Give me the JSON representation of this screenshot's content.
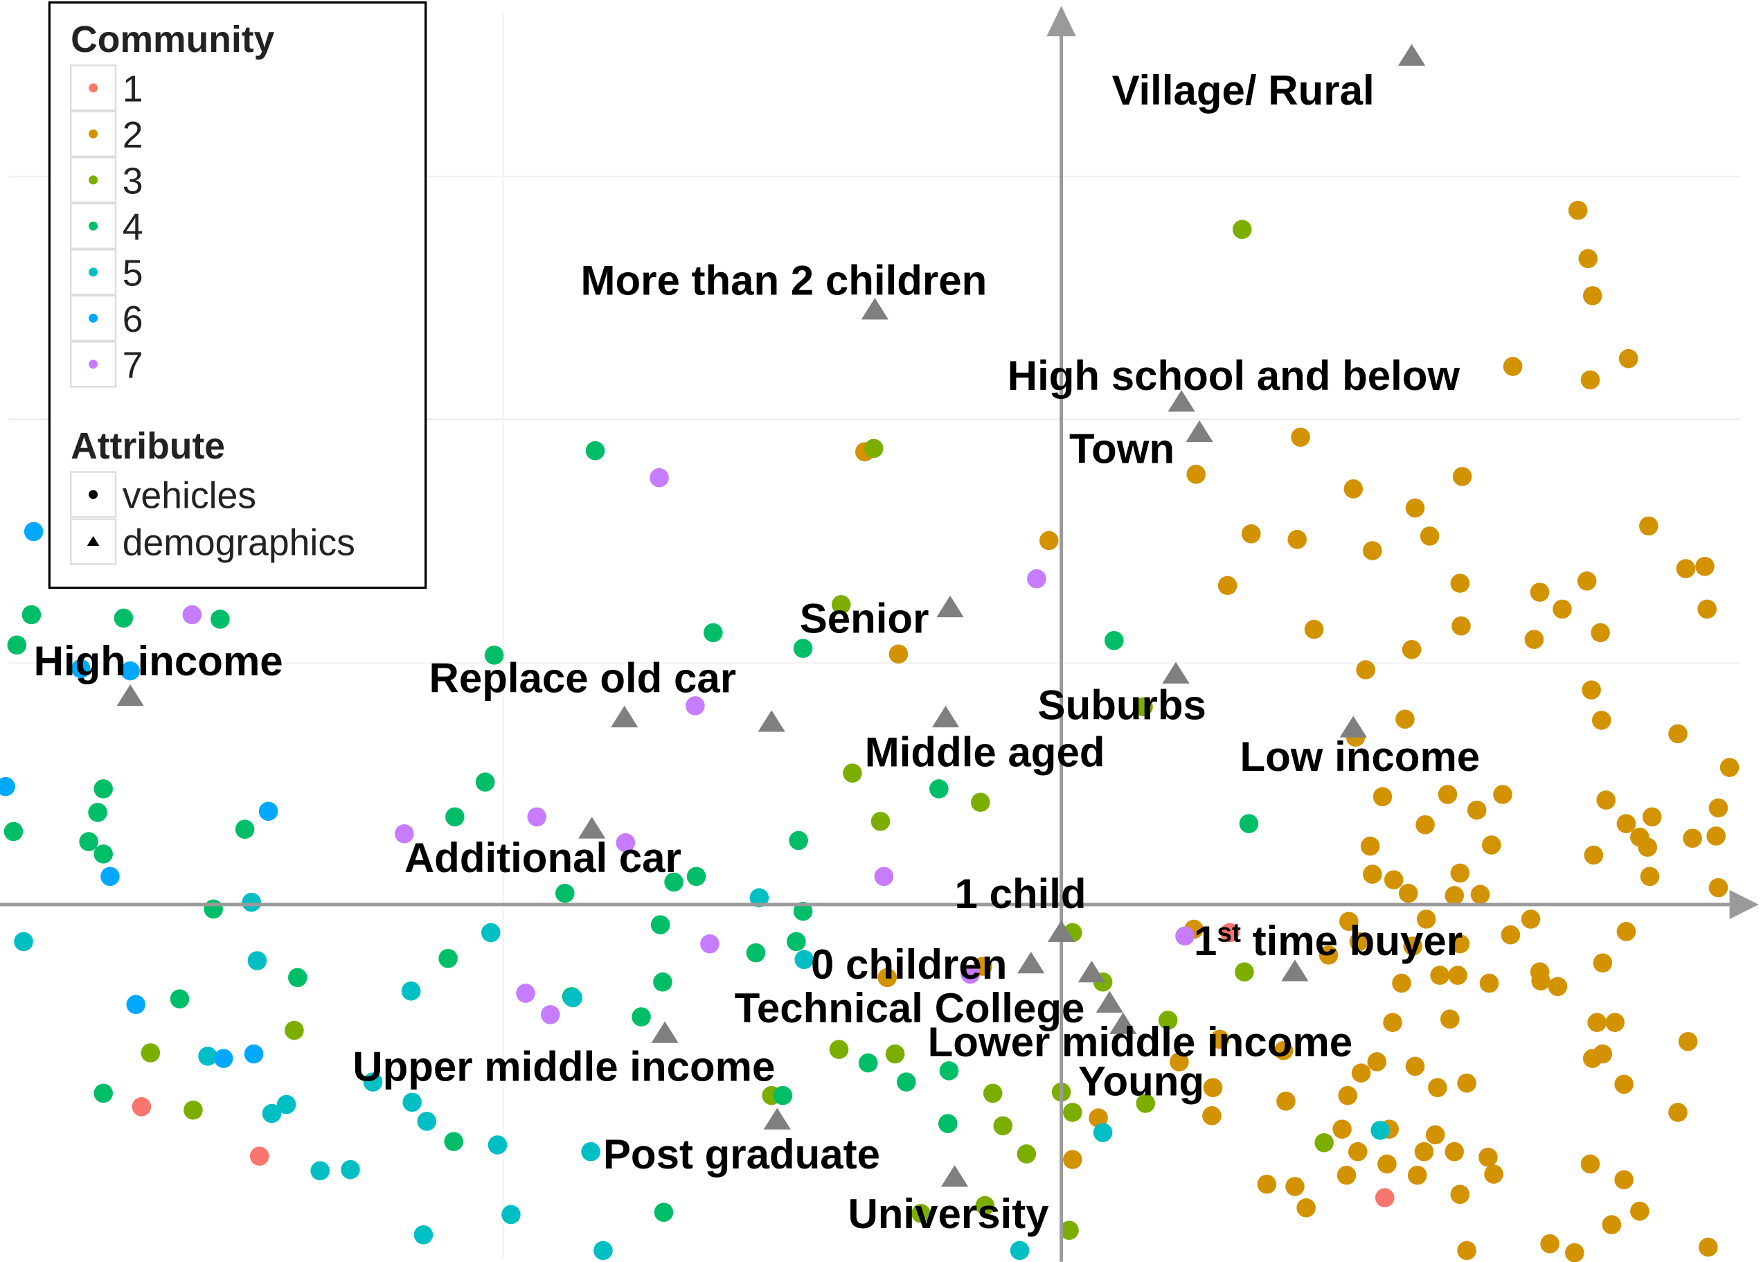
{
  "chart_data": {
    "type": "scatter",
    "title": "",
    "xlabel": "",
    "ylabel": "",
    "xlim": [
      -945,
      623
    ],
    "ylim": [
      -318,
      805
    ],
    "grid": true,
    "legend_placement": "top-left",
    "legend": {
      "community_title": "Community",
      "communities": [
        {
          "name": "1",
          "color": "#F8766D"
        },
        {
          "name": "2",
          "color": "#D39200"
        },
        {
          "name": "3",
          "color": "#7CAE00"
        },
        {
          "name": "4",
          "color": "#00BE67"
        },
        {
          "name": "5",
          "color": "#00BFC4"
        },
        {
          "name": "6",
          "color": "#00A9FF"
        },
        {
          "name": "7",
          "color": "#C77CFF"
        }
      ],
      "attribute_title": "Attribute",
      "attributes": [
        {
          "name": "vehicles",
          "shape": "circle"
        },
        {
          "name": "demographics",
          "shape": "triangle"
        }
      ]
    },
    "series": [
      {
        "name": "1",
        "points": [
          [
            150,
            -25
          ],
          [
            -819,
            -180
          ],
          [
            -714,
            -224
          ],
          [
            288,
            -261
          ]
        ]
      },
      {
        "name": "2",
        "points": [
          [
            460,
            618
          ],
          [
            469,
            575
          ],
          [
            473,
            542
          ],
          [
            402,
            479
          ],
          [
            471,
            467
          ],
          [
            505,
            486
          ],
          [
            213,
            416
          ],
          [
            120,
            383
          ],
          [
            260,
            370
          ],
          [
            357,
            381
          ],
          [
            315,
            353
          ],
          [
            169,
            330
          ],
          [
            210,
            325
          ],
          [
            328,
            328
          ],
          [
            277,
            315
          ],
          [
            523,
            337
          ],
          [
            148,
            284
          ],
          [
            355,
            286
          ],
          [
            426,
            278
          ],
          [
            468,
            288
          ],
          [
            556,
            299
          ],
          [
            573,
            301
          ],
          [
            446,
            263
          ],
          [
            575,
            263
          ],
          [
            225,
            245
          ],
          [
            312,
            227
          ],
          [
            356,
            248
          ],
          [
            421,
            236
          ],
          [
            480,
            242
          ],
          [
            271,
            209
          ],
          [
            472,
            191
          ],
          [
            481,
            164
          ],
          [
            306,
            165
          ],
          [
            549,
            152
          ],
          [
            262,
            149
          ],
          [
            595,
            122
          ],
          [
            286,
            96
          ],
          [
            344,
            98
          ],
          [
            370,
            84
          ],
          [
            393,
            98
          ],
          [
            485,
            93
          ],
          [
            324,
            71
          ],
          [
            503,
            72
          ],
          [
            526,
            78
          ],
          [
            515,
            60
          ],
          [
            562,
            59
          ],
          [
            583,
            61
          ],
          [
            585,
            86
          ],
          [
            275,
            52
          ],
          [
            383,
            53
          ],
          [
            474,
            44
          ],
          [
            522,
            51
          ],
          [
            277,
            27
          ],
          [
            296,
            22
          ],
          [
            355,
            28
          ],
          [
            524,
            25
          ],
          [
            309,
            10
          ],
          [
            350,
            8
          ],
          [
            373,
            9
          ],
          [
            585,
            15
          ],
          [
            256,
            -15
          ],
          [
            325,
            -13
          ],
          [
            400,
            -27
          ],
          [
            418,
            -13
          ],
          [
            503,
            -24
          ],
          [
            265,
            -33
          ],
          [
            313,
            -37
          ],
          [
            355,
            -35
          ],
          [
            238,
            -45
          ],
          [
            303,
            -70
          ],
          [
            337,
            -63
          ],
          [
            353,
            -63
          ],
          [
            381,
            -70
          ],
          [
            427,
            -68
          ],
          [
            442,
            -73
          ],
          [
            482,
            -52
          ],
          [
            426,
            -60
          ],
          [
            295,
            -105
          ],
          [
            346,
            -102
          ],
          [
            477,
            -105
          ],
          [
            493,
            -105
          ],
          [
            558,
            -122
          ],
          [
            473,
            -137
          ],
          [
            482,
            -133
          ],
          [
            198,
            -130
          ],
          [
            281,
            -140
          ],
          [
            315,
            -144
          ],
          [
            267,
            -150
          ],
          [
            335,
            -163
          ],
          [
            361,
            -159
          ],
          [
            501,
            -160
          ],
          [
            105,
            -140
          ],
          [
            135,
            -163
          ],
          [
            200,
            -175
          ],
          [
            255,
            -170
          ],
          [
            134,
            -188
          ],
          [
            250,
            -200
          ],
          [
            264,
            -220
          ],
          [
            292,
            -200
          ],
          [
            333,
            -205
          ],
          [
            323,
            -220
          ],
          [
            350,
            -220
          ],
          [
            380,
            -225
          ],
          [
            549,
            -185
          ],
          [
            385,
            -240
          ],
          [
            471,
            -231
          ],
          [
            254,
            -241
          ],
          [
            290,
            -231
          ],
          [
            317,
            -241
          ],
          [
            501,
            -245
          ],
          [
            183,
            -249
          ],
          [
            208,
            -251
          ],
          [
            355,
            -258
          ],
          [
            218,
            -270
          ],
          [
            490,
            -285
          ],
          [
            515,
            -273
          ],
          [
            435,
            -302
          ],
          [
            457,
            -310
          ],
          [
            576,
            -305
          ],
          [
            361,
            -308
          ],
          [
            -175,
            403
          ],
          [
            -11,
            324
          ],
          [
            -145,
            223
          ],
          [
            -155,
            -65
          ],
          [
            -70,
            -55
          ],
          [
            33,
            -190
          ],
          [
            10,
            -227
          ],
          [
            118,
            -22
          ],
          [
            141,
            -120
          ]
        ]
      },
      {
        "name": "3",
        "points": [
          [
            161,
            601
          ],
          [
            -167,
            406
          ],
          [
            -196,
            267
          ],
          [
            73,
            176
          ],
          [
            -186,
            117
          ],
          [
            -72,
            91
          ],
          [
            -161,
            74
          ],
          [
            163,
            -60
          ],
          [
            37,
            -69
          ],
          [
            95,
            -103
          ],
          [
            75,
            -177
          ],
          [
            0,
            -167
          ],
          [
            10,
            -185
          ],
          [
            -61,
            -168
          ],
          [
            -52,
            -197
          ],
          [
            -31,
            -222
          ],
          [
            -148,
            -133
          ],
          [
            -198,
            -129
          ],
          [
            -258,
            -170
          ],
          [
            234,
            -212
          ],
          [
            -683,
            -112
          ],
          [
            -811,
            -132
          ],
          [
            -773,
            -183
          ],
          [
            7,
            -290
          ],
          [
            -68,
            -268
          ],
          [
            -125,
            -275
          ],
          [
            10,
            -25
          ]
        ]
      },
      {
        "name": "4",
        "points": [
          [
            -415,
            404
          ],
          [
            -310,
            242
          ],
          [
            -230,
            228
          ],
          [
            -505,
            222
          ],
          [
            47,
            235
          ],
          [
            -109,
            103
          ],
          [
            167,
            72
          ],
          [
            -234,
            57
          ],
          [
            -325,
            25
          ],
          [
            -345,
            20
          ],
          [
            -442,
            10
          ],
          [
            -513,
            109
          ],
          [
            -540,
            78
          ],
          [
            -727,
            67
          ],
          [
            -853,
            103
          ],
          [
            -858,
            82
          ],
          [
            -866,
            56
          ],
          [
            -853,
            45
          ],
          [
            -933,
            65
          ],
          [
            -917,
            258
          ],
          [
            -835,
            255
          ],
          [
            -749,
            254
          ],
          [
            -930,
            231
          ],
          [
            -755,
            -4
          ],
          [
            -785,
            -84
          ],
          [
            -680,
            -65
          ],
          [
            -546,
            -48
          ],
          [
            -357,
            -18
          ],
          [
            -272,
            -43
          ],
          [
            -236,
            -33
          ],
          [
            -230,
            -6
          ],
          [
            -355,
            -69
          ],
          [
            -374,
            -100
          ],
          [
            -436,
            -82
          ],
          [
            -138,
            -158
          ],
          [
            -100,
            -148
          ],
          [
            -172,
            -141
          ],
          [
            -101,
            -195
          ],
          [
            -248,
            -170
          ],
          [
            -354,
            -274
          ],
          [
            -541,
            -211
          ],
          [
            -853,
            -168
          ]
        ]
      },
      {
        "name": "5",
        "points": [
          [
            -924,
            -33
          ],
          [
            -716,
            -50
          ],
          [
            -721,
            2
          ],
          [
            -508,
            -25
          ],
          [
            -579,
            -77
          ],
          [
            -613,
            -158
          ],
          [
            -578,
            -176
          ],
          [
            -565,
            -193
          ],
          [
            -502,
            -214
          ],
          [
            -419,
            -220
          ],
          [
            -703,
            -186
          ],
          [
            -690,
            -178
          ],
          [
            -760,
            -135
          ],
          [
            -660,
            -237
          ],
          [
            -633,
            -236
          ],
          [
            -490,
            -276
          ],
          [
            -568,
            -294
          ],
          [
            -408,
            -308
          ],
          [
            -269,
            6
          ],
          [
            -229,
            -49
          ],
          [
            -435,
            -83
          ],
          [
            37,
            -203
          ],
          [
            284,
            -201
          ],
          [
            -37,
            -308
          ]
        ]
      },
      {
        "name": "6",
        "points": [
          [
            -915,
            332
          ],
          [
            -873,
            210
          ],
          [
            -829,
            208
          ],
          [
            -847,
            25
          ],
          [
            -706,
            83
          ],
          [
            -824,
            -89
          ],
          [
            -746,
            -137
          ],
          [
            -719,
            -133
          ],
          [
            -940,
            105
          ]
        ]
      },
      {
        "name": "7",
        "points": [
          [
            -358,
            380
          ],
          [
            -22,
            290
          ],
          [
            -774,
            258
          ],
          [
            -326,
            177
          ],
          [
            -467,
            78
          ],
          [
            -585,
            63
          ],
          [
            -388,
            55
          ],
          [
            -158,
            25
          ],
          [
            -313,
            -35
          ],
          [
            -81,
            -62
          ],
          [
            -477,
            -79
          ],
          [
            -455,
            -98
          ],
          [
            110,
            -28
          ]
        ]
      }
    ],
    "demographics": [
      {
        "label": "Village/ Rural",
        "x": 312,
        "y": 755
      },
      {
        "label": "More than 2 children",
        "x": -166,
        "y": 529
      },
      {
        "label": "High school and below",
        "x": 107,
        "y": 447
      },
      {
        "label": "Town",
        "x": 123,
        "y": 420
      },
      {
        "label": "Senior",
        "x": -99,
        "y": 264
      },
      {
        "label": "Suburbs",
        "x": 102,
        "y": 205
      },
      {
        "label": "Replace old car",
        "x": -389,
        "y": 166
      },
      {
        "label": "",
        "x": -258,
        "y": 162
      },
      {
        "label": "Middle aged",
        "x": -103,
        "y": 166
      },
      {
        "label": "Low income",
        "x": 260,
        "y": 157
      },
      {
        "label": "High income",
        "x": -829,
        "y": 185
      },
      {
        "label": "Additional car",
        "x": -418,
        "y": 67
      },
      {
        "label": "1 child",
        "x": 0,
        "y": -25
      },
      {
        "label": "0 children",
        "x": -27,
        "y": -53
      },
      {
        "label": "Young",
        "x": 27,
        "y": -61
      },
      {
        "label": "Technical College",
        "x": 43,
        "y": -88
      },
      {
        "label": "Lower middle income",
        "x": 55,
        "y": -107
      },
      {
        "label": "Upper middle income",
        "x": -353,
        "y": -115
      },
      {
        "label": "Post graduate",
        "x": -253,
        "y": -192
      },
      {
        "label": "University",
        "x": -95,
        "y": -243
      }
    ],
    "first_time_buyer": {
      "number": "1",
      "suffix": "st",
      "rest": " time buyer",
      "x": 208,
      "y": -60
    }
  }
}
